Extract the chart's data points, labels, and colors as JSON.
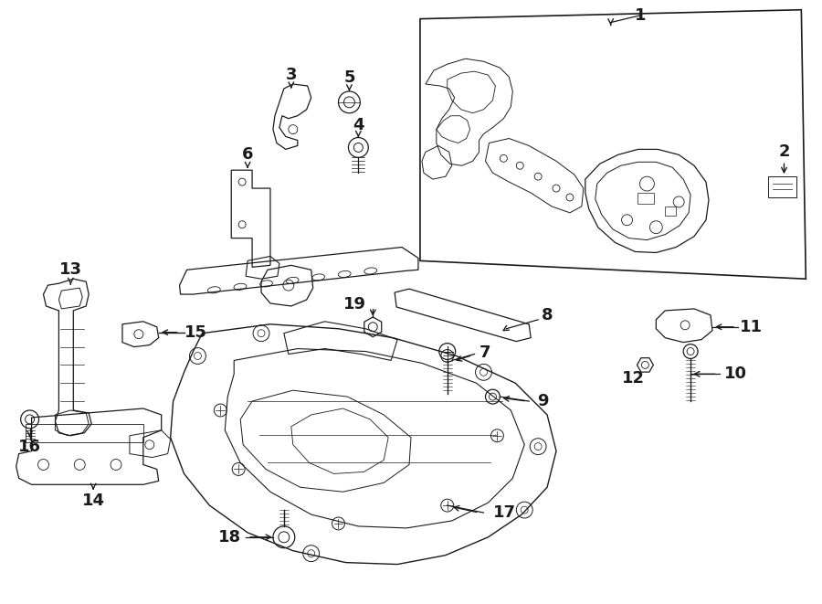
{
  "bg_color": "#ffffff",
  "line_color": "#1a1a1a",
  "fig_width": 9.0,
  "fig_height": 6.61,
  "dpi": 100,
  "label_fontsize": 13,
  "callout_lw": 1.0
}
